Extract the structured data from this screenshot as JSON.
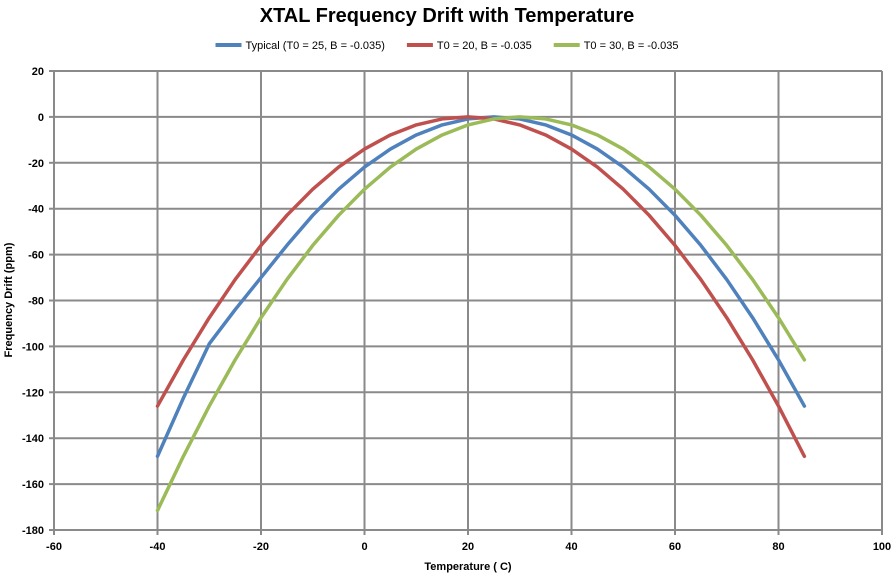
{
  "chart_data": {
    "type": "line",
    "title": "XTAL Frequency Drift with Temperature",
    "xlabel": "Temperature ( C)",
    "ylabel": "Frequency Drift (ppm)",
    "xlim": [
      -60,
      100
    ],
    "ylim": [
      -180,
      20
    ],
    "xticks": [
      -60,
      -40,
      -20,
      0,
      20,
      40,
      60,
      80,
      100
    ],
    "yticks": [
      20,
      0,
      -20,
      -40,
      -60,
      -80,
      -100,
      -120,
      -140,
      -160,
      -180
    ],
    "grid": true,
    "legend_position": "top",
    "x": [
      -40,
      -35,
      -30,
      -25,
      -20,
      -15,
      -10,
      -5,
      0,
      5,
      10,
      15,
      20,
      25,
      30,
      35,
      40,
      45,
      50,
      55,
      60,
      65,
      70,
      75,
      80,
      85
    ],
    "series": [
      {
        "name": "Typical (T0 = 25, B = -0.035)",
        "color": "#4F81BD",
        "values": [
          -147.875,
          -122.5,
          -98.875,
          -84.0,
          -70.0,
          -56.0,
          -42.875,
          -31.5,
          -21.875,
          -14.0,
          -7.875,
          -3.5,
          -0.875,
          0.0,
          -0.875,
          -3.5,
          -7.875,
          -14.0,
          -21.875,
          -31.5,
          -42.875,
          -56.0,
          -70.875,
          -87.5,
          -105.875,
          -126.0
        ]
      },
      {
        "name": "T0 = 20, B = -0.035",
        "color": "#C0504D",
        "values": [
          -126.0,
          -105.875,
          -87.5,
          -70.875,
          -56.0,
          -42.875,
          -31.5,
          -21.875,
          -14.0,
          -7.875,
          -3.5,
          -0.875,
          0.0,
          -0.875,
          -3.5,
          -7.875,
          -14.0,
          -21.875,
          -31.5,
          -42.875,
          -56.0,
          -70.875,
          -87.5,
          -105.875,
          -126.0,
          -147.875
        ]
      },
      {
        "name": "T0 = 30, B = -0.035",
        "color": "#9BBB59",
        "values": [
          -171.5,
          -147.875,
          -126.0,
          -105.875,
          -87.5,
          -70.875,
          -56.0,
          -42.875,
          -31.5,
          -21.875,
          -14.0,
          -7.875,
          -3.5,
          -0.875,
          0.0,
          -0.875,
          -3.5,
          -7.875,
          -14.0,
          -21.875,
          -31.5,
          -42.875,
          -56.0,
          -70.875,
          -87.5,
          -105.875
        ]
      }
    ]
  }
}
